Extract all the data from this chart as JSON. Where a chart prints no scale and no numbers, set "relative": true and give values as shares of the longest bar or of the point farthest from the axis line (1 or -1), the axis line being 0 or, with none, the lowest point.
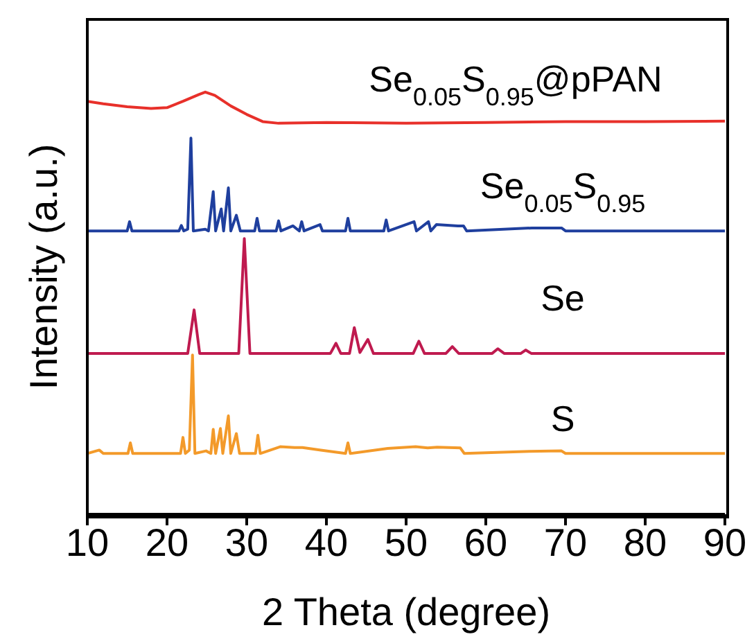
{
  "chart_data": {
    "type": "line",
    "relative": true,
    "xlabel": "2 Theta (degree)",
    "ylabel": "Intensity  (a.u.)",
    "xlim": [
      10,
      90
    ],
    "xticks": [
      10,
      20,
      30,
      40,
      50,
      60,
      70,
      80,
      90
    ],
    "series": [
      {
        "name": "Se$_{0.05}$S$_{0.95}$@pPAN",
        "color": "#e8302a",
        "x": [
          10,
          12,
          15,
          18,
          20,
          22,
          24,
          24.8,
          26,
          28,
          30,
          32,
          34,
          40,
          50,
          60,
          70,
          80,
          90
        ],
        "values": [
          0.978,
          0.972,
          0.965,
          0.961,
          0.963,
          0.978,
          0.994,
          1.0,
          0.992,
          0.967,
          0.947,
          0.93,
          0.926,
          0.928,
          0.926,
          0.928,
          0.93,
          0.93,
          0.931
        ]
      },
      {
        "name": "Se$_{0.05}$S$_{0.95}$",
        "color": "#1f3f9e",
        "x": [
          10,
          15,
          15.3,
          15.6,
          21.5,
          21.8,
          22.1,
          22.6,
          23,
          23.3,
          24.8,
          25.2,
          25.8,
          26.1,
          26.8,
          27.1,
          27.7,
          28,
          28.7,
          29.2,
          31,
          31.3,
          31.6,
          33.7,
          34,
          34.3,
          35.8,
          36.6,
          36.9,
          37.2,
          39.2,
          39.5,
          42.4,
          42.7,
          43,
          47.2,
          47.5,
          47.8,
          51,
          51.3,
          52.8,
          53.1,
          53.8,
          56.5,
          57.2,
          57.6,
          65.8,
          69.5,
          70,
          90
        ],
        "values": [
          0.671,
          0.671,
          0.693,
          0.671,
          0.671,
          0.684,
          0.671,
          0.675,
          0.891,
          0.671,
          0.675,
          0.671,
          0.764,
          0.671,
          0.723,
          0.671,
          0.773,
          0.671,
          0.708,
          0.671,
          0.671,
          0.701,
          0.671,
          0.671,
          0.695,
          0.671,
          0.683,
          0.671,
          0.693,
          0.671,
          0.686,
          0.671,
          0.671,
          0.701,
          0.671,
          0.671,
          0.697,
          0.671,
          0.693,
          0.671,
          0.693,
          0.671,
          0.686,
          0.683,
          0.683,
          0.671,
          0.678,
          0.678,
          0.671,
          0.671
        ]
      },
      {
        "name": "Se",
        "color": "#bf1a4f",
        "x": [
          10,
          22.6,
          23.4,
          24.1,
          29,
          29.7,
          30.4,
          40.5,
          41.2,
          41.8,
          42.9,
          43.5,
          44.2,
          45.2,
          45.9,
          50.9,
          51.6,
          52.3,
          55,
          55.8,
          56.6,
          60.8,
          61.5,
          62.3,
          64.4,
          65,
          65.7,
          90
        ],
        "values": [
          0.381,
          0.381,
          0.484,
          0.381,
          0.381,
          0.653,
          0.381,
          0.381,
          0.405,
          0.381,
          0.381,
          0.442,
          0.383,
          0.414,
          0.381,
          0.381,
          0.41,
          0.381,
          0.381,
          0.397,
          0.381,
          0.381,
          0.392,
          0.381,
          0.381,
          0.389,
          0.381,
          0.381
        ]
      },
      {
        "name": "S",
        "color": "#f39a2a",
        "x": [
          10,
          11.5,
          12,
          15.1,
          15.4,
          15.7,
          21.7,
          22,
          22.3,
          22.8,
          23.2,
          23.5,
          24.9,
          25.5,
          25.8,
          26.1,
          26.7,
          27,
          27.7,
          28,
          28.7,
          29.1,
          31.1,
          31.4,
          31.7,
          34.2,
          36,
          37,
          39.3,
          42.4,
          42.7,
          43,
          47.7,
          51.2,
          52.7,
          53.9,
          56.8,
          57.3,
          65.5,
          69.5,
          70,
          90
        ],
        "values": [
          0.144,
          0.152,
          0.144,
          0.144,
          0.169,
          0.144,
          0.144,
          0.182,
          0.144,
          0.152,
          0.377,
          0.144,
          0.15,
          0.144,
          0.201,
          0.144,
          0.203,
          0.144,
          0.233,
          0.144,
          0.191,
          0.144,
          0.144,
          0.187,
          0.144,
          0.16,
          0.158,
          0.158,
          0.152,
          0.144,
          0.169,
          0.144,
          0.156,
          0.16,
          0.157,
          0.159,
          0.157,
          0.144,
          0.149,
          0.15,
          0.144,
          0.144
        ]
      }
    ]
  }
}
